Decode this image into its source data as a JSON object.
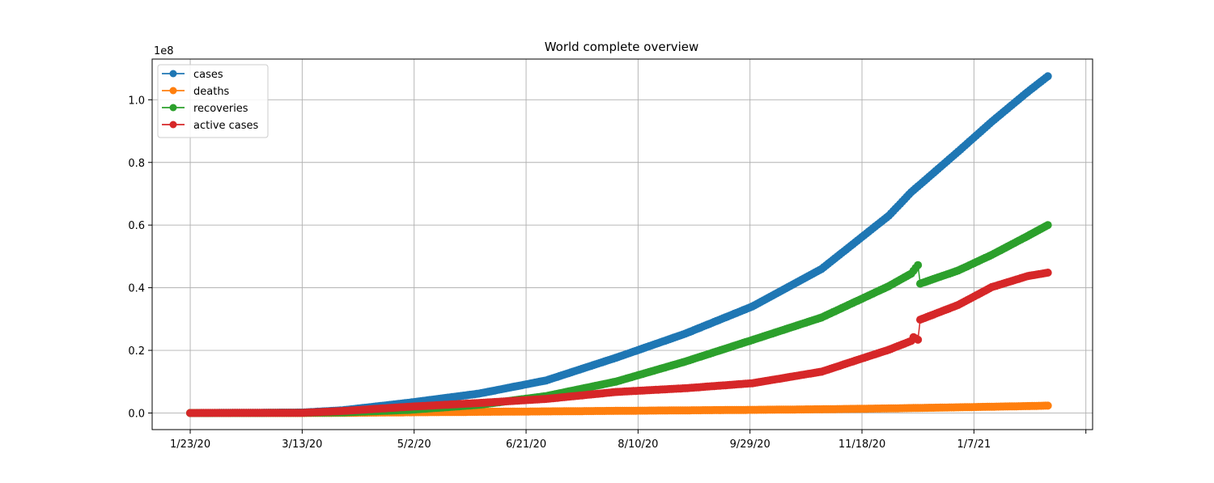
{
  "chart_data": {
    "type": "line",
    "title": "World complete overview",
    "xlabel": "",
    "ylabel": "",
    "y_multiplier_label": "1e8",
    "x_dates": [
      "2020-01-23",
      "2020-02-22",
      "2020-03-13",
      "2020-03-31",
      "2020-04-30",
      "2020-05-31",
      "2020-06-30",
      "2020-07-31",
      "2020-08-31",
      "2020-09-30",
      "2020-10-31",
      "2020-11-30",
      "2020-12-10",
      "2020-12-14",
      "2020-12-31",
      "2021-01-15",
      "2021-01-31",
      "2021-02-09"
    ],
    "x_tick_labels": [
      "1/23/20",
      "3/13/20",
      "5/2/20",
      "6/21/20",
      "8/10/20",
      "9/29/20",
      "11/18/20",
      "1/7/21",
      ""
    ],
    "x_tick_dates": [
      "2020-01-23",
      "2020-03-13",
      "2020-05-02",
      "2020-06-21",
      "2020-08-10",
      "2020-09-29",
      "2020-11-18",
      "2021-01-07",
      "2021-02-26"
    ],
    "x_range": [
      "2020-01-06",
      "2021-03-01"
    ],
    "y_tick_labels": [
      "0.0",
      "0.2",
      "0.4",
      "0.6",
      "0.8",
      "1.0"
    ],
    "y_ticks": [
      0,
      20000000,
      40000000,
      60000000,
      80000000,
      100000000
    ],
    "ylim": [
      -5300000,
      113000000
    ],
    "grid": true,
    "legend_position": "top-left",
    "series": [
      {
        "name": "cases",
        "color": "#1f77b4",
        "points": [
          [
            "2020-01-23",
            555
          ],
          [
            "2020-02-22",
            78000
          ],
          [
            "2020-03-13",
            145000
          ],
          [
            "2020-03-31",
            860000
          ],
          [
            "2020-04-30",
            3300000
          ],
          [
            "2020-05-31",
            6200000
          ],
          [
            "2020-06-30",
            10400000
          ],
          [
            "2020-07-31",
            17600000
          ],
          [
            "2020-08-31",
            25300000
          ],
          [
            "2020-09-30",
            34000000
          ],
          [
            "2020-10-31",
            46000000
          ],
          [
            "2020-11-30",
            63000000
          ],
          [
            "2020-12-10",
            70500000
          ],
          [
            "2020-12-31",
            83500000
          ],
          [
            "2021-01-15",
            93000000
          ],
          [
            "2021-01-31",
            102500000
          ],
          [
            "2021-02-09",
            107500000
          ]
        ]
      },
      {
        "name": "deaths",
        "color": "#ff7f0e",
        "points": [
          [
            "2020-01-23",
            17
          ],
          [
            "2020-03-13",
            5400
          ],
          [
            "2020-03-31",
            42000
          ],
          [
            "2020-04-30",
            230000
          ],
          [
            "2020-05-31",
            370000
          ],
          [
            "2020-06-30",
            510000
          ],
          [
            "2020-07-31",
            680000
          ],
          [
            "2020-08-31",
            850000
          ],
          [
            "2020-09-30",
            1000000
          ],
          [
            "2020-10-31",
            1190000
          ],
          [
            "2020-11-30",
            1460000
          ],
          [
            "2020-12-31",
            1810000
          ],
          [
            "2021-01-31",
            2210000
          ],
          [
            "2021-02-09",
            2350000
          ]
        ]
      },
      {
        "name": "recoveries",
        "color": "#2ca02c",
        "points": [
          [
            "2020-01-23",
            0
          ],
          [
            "2020-02-22",
            23000
          ],
          [
            "2020-03-13",
            70000
          ],
          [
            "2020-03-31",
            180000
          ],
          [
            "2020-04-30",
            1000000
          ],
          [
            "2020-05-31",
            2600000
          ],
          [
            "2020-06-30",
            5400000
          ],
          [
            "2020-07-31",
            10000000
          ],
          [
            "2020-08-31",
            16400000
          ],
          [
            "2020-09-30",
            23300000
          ],
          [
            "2020-10-31",
            30500000
          ],
          [
            "2020-11-30",
            40500000
          ],
          [
            "2020-12-10",
            44500000
          ],
          [
            "2020-12-13",
            47200000
          ],
          [
            "2020-12-14",
            41300000
          ],
          [
            "2020-12-31",
            45500000
          ],
          [
            "2021-01-15",
            50500000
          ],
          [
            "2021-01-31",
            56500000
          ],
          [
            "2021-02-09",
            60000000
          ]
        ]
      },
      {
        "name": "active cases",
        "color": "#d62728",
        "points": [
          [
            "2020-01-23",
            540
          ],
          [
            "2020-02-22",
            55000
          ],
          [
            "2020-03-13",
            70000
          ],
          [
            "2020-03-31",
            640000
          ],
          [
            "2020-04-30",
            2000000
          ],
          [
            "2020-05-31",
            3200000
          ],
          [
            "2020-06-30",
            4500000
          ],
          [
            "2020-07-31",
            6700000
          ],
          [
            "2020-08-31",
            7900000
          ],
          [
            "2020-09-30",
            9500000
          ],
          [
            "2020-10-31",
            13200000
          ],
          [
            "2020-11-30",
            20200000
          ],
          [
            "2020-12-10",
            23000000
          ],
          [
            "2020-12-11",
            24200000
          ],
          [
            "2020-12-13",
            23400000
          ],
          [
            "2020-12-14",
            29800000
          ],
          [
            "2020-12-31",
            34500000
          ],
          [
            "2021-01-15",
            40200000
          ],
          [
            "2021-01-31",
            43700000
          ],
          [
            "2021-02-09",
            44800000
          ]
        ]
      }
    ]
  }
}
